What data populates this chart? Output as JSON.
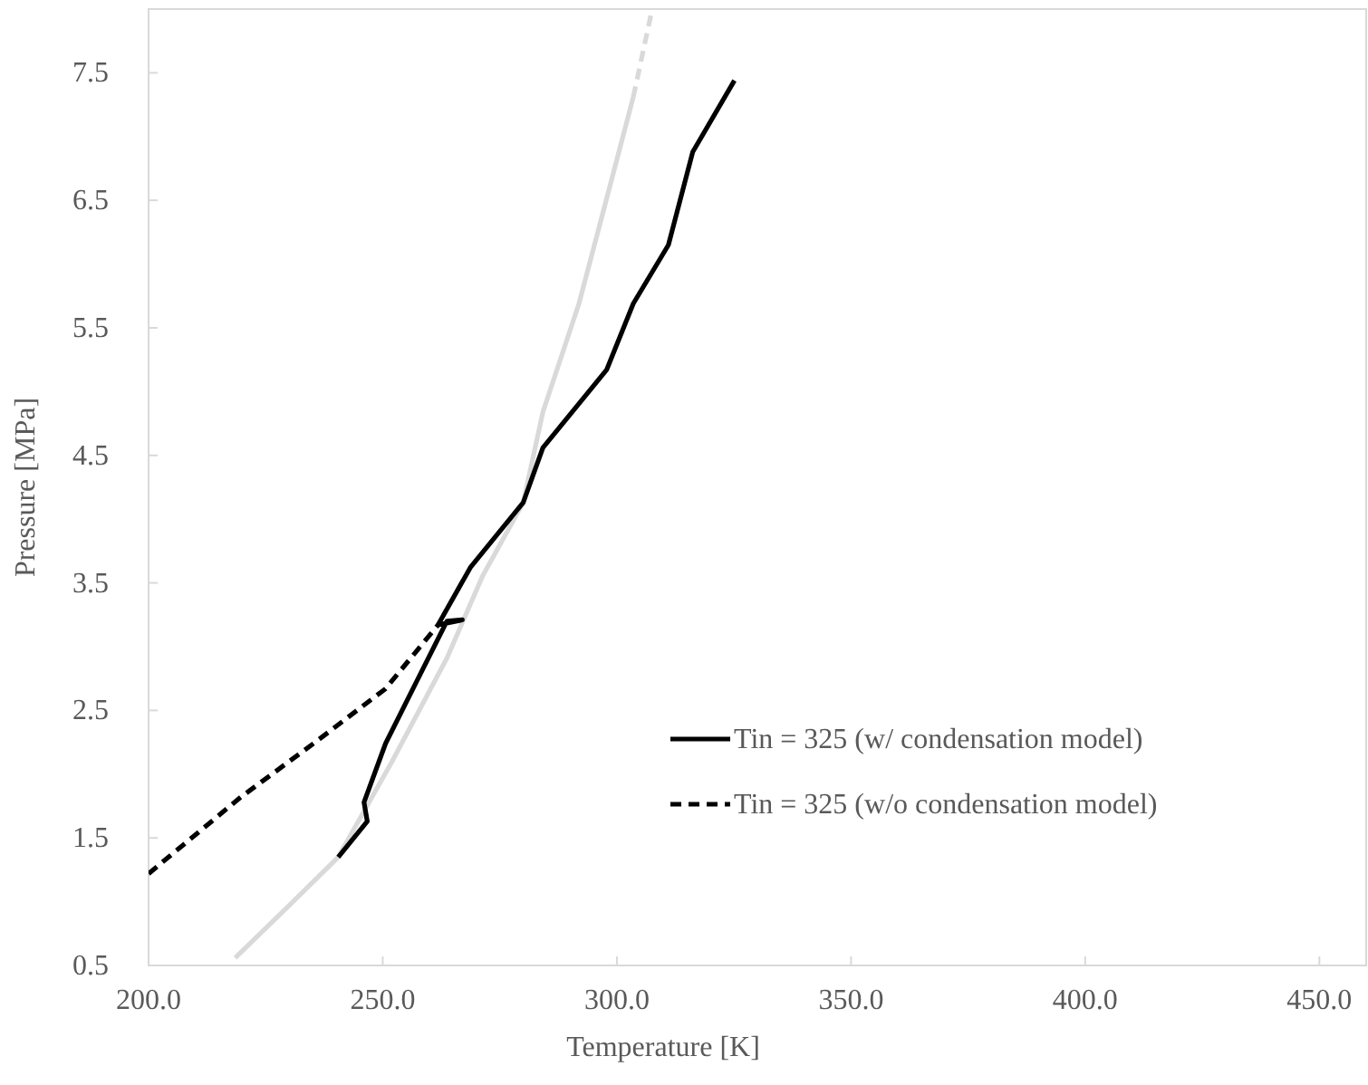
{
  "chart_data": {
    "type": "line",
    "xlabel": "Temperature [K]",
    "ylabel": "Pressure [MPa]",
    "xlim": [
      200,
      460
    ],
    "xticks": [
      {
        "value": 200,
        "label": "200.0"
      },
      {
        "value": 250,
        "label": "250.0"
      },
      {
        "value": 300,
        "label": "300.0"
      },
      {
        "value": 350,
        "label": "350.0"
      },
      {
        "value": 400,
        "label": "400.0"
      },
      {
        "value": 450,
        "label": "450.0"
      }
    ],
    "ylim": [
      0.5,
      8.0
    ],
    "yticks": [
      0.5,
      1.5,
      2.5,
      3.5,
      4.5,
      5.5,
      6.5,
      7.5
    ],
    "grid": false,
    "legend": "right",
    "marker": "none",
    "series": [
      {
        "color": "#d9d9d9",
        "line_style": "solid",
        "x": [
          218.5,
          230,
          240.5,
          252,
          263.7,
          271.4,
          280,
          284.2,
          291.9,
          297,
          303.5
        ],
        "values": [
          0.56,
          0.97,
          1.35,
          2.1,
          2.91,
          3.56,
          4.13,
          4.84,
          5.69,
          6.4,
          7.31
        ]
      },
      {
        "color": "#d9d9d9",
        "line_style": "dashed",
        "x": [
          303.5,
          307.3
        ],
        "values": [
          7.31,
          7.96
        ]
      },
      {
        "name": "Tin = 325 (w/ condensation model)",
        "color": "#000000",
        "line_style": "solid",
        "x": [
          240.5,
          246.7,
          246,
          250.6,
          257,
          263.7,
          267,
          261.8,
          268.7,
          280,
          284.2,
          297.8,
          303.5,
          311,
          316.2,
          325.1
        ],
        "values": [
          1.35,
          1.63,
          1.78,
          2.24,
          2.71,
          3.2,
          3.21,
          3.17,
          3.62,
          4.13,
          4.56,
          5.17,
          5.69,
          6.15,
          6.88,
          7.44
        ]
      },
      {
        "name": "Tin = 325 (w/o condensation model)",
        "color": "#000000",
        "line_style": "dashed",
        "x": [
          200,
          219.7,
          235.2,
          250.6,
          261.8
        ],
        "values": [
          1.22,
          1.82,
          2.24,
          2.67,
          3.17
        ]
      }
    ]
  }
}
